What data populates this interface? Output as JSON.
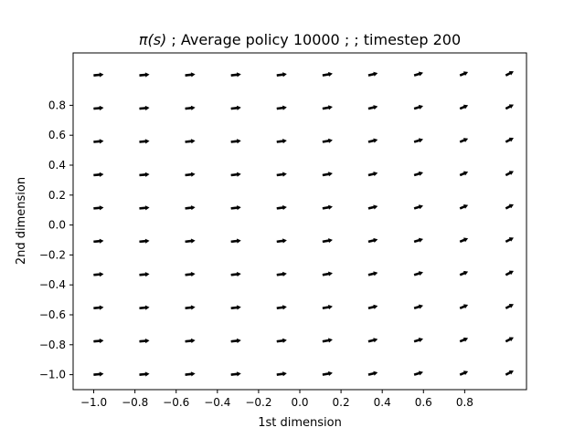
{
  "chart_data": {
    "type": "quiver",
    "title_prefix": "π(s)",
    "title_suffix": " ; Average policy 10000 ;  ; timestep 200",
    "xlabel": "1st dimension",
    "ylabel": "2nd dimension",
    "x_ticks": [
      "−1.0",
      "−0.8",
      "−0.6",
      "−0.4",
      "−0.2",
      "0.0",
      "0.2",
      "0.4",
      "0.6",
      "0.8"
    ],
    "x_tick_values": [
      -1.0,
      -0.8,
      -0.6,
      -0.4,
      -0.2,
      0.0,
      0.2,
      0.4,
      0.6,
      0.8
    ],
    "y_ticks": [
      "−1.0",
      "−0.8",
      "−0.6",
      "−0.4",
      "−0.2",
      "0.0",
      "0.2",
      "0.4",
      "0.6",
      "0.8"
    ],
    "y_tick_values": [
      -1.0,
      -0.8,
      -0.6,
      -0.4,
      -0.2,
      0.0,
      0.2,
      0.4,
      0.6,
      0.8
    ],
    "xlim": [
      -1.1,
      1.1
    ],
    "ylim": [
      -1.1,
      1.15
    ],
    "grid": false,
    "x": [
      -1.0,
      -0.7778,
      -0.5556,
      -0.3333,
      -0.1111,
      0.1111,
      0.3333,
      0.5556,
      0.7778,
      1.0
    ],
    "y": [
      -1.0,
      -0.7778,
      -0.5556,
      -0.3333,
      -0.1111,
      0.1111,
      0.3333,
      0.5556,
      0.7778,
      1.0
    ],
    "u": [
      [
        0.045,
        0.045,
        0.045,
        0.045,
        0.045,
        0.045,
        0.042,
        0.04,
        0.036,
        0.035
      ],
      [
        0.045,
        0.045,
        0.045,
        0.045,
        0.045,
        0.045,
        0.042,
        0.04,
        0.036,
        0.035
      ],
      [
        0.045,
        0.045,
        0.045,
        0.045,
        0.045,
        0.045,
        0.042,
        0.04,
        0.036,
        0.035
      ],
      [
        0.045,
        0.045,
        0.045,
        0.045,
        0.045,
        0.045,
        0.042,
        0.04,
        0.036,
        0.035
      ],
      [
        0.045,
        0.045,
        0.045,
        0.045,
        0.045,
        0.045,
        0.042,
        0.04,
        0.036,
        0.035
      ],
      [
        0.045,
        0.045,
        0.045,
        0.045,
        0.045,
        0.045,
        0.042,
        0.04,
        0.036,
        0.035
      ],
      [
        0.045,
        0.045,
        0.045,
        0.045,
        0.045,
        0.045,
        0.042,
        0.04,
        0.036,
        0.035
      ],
      [
        0.045,
        0.045,
        0.045,
        0.045,
        0.045,
        0.045,
        0.042,
        0.04,
        0.036,
        0.035
      ],
      [
        0.045,
        0.045,
        0.045,
        0.045,
        0.045,
        0.045,
        0.042,
        0.04,
        0.036,
        0.035
      ],
      [
        0.045,
        0.045,
        0.045,
        0.045,
        0.045,
        0.045,
        0.042,
        0.04,
        0.036,
        0.035
      ]
    ],
    "v": [
      [
        0.004,
        0.004,
        0.005,
        0.005,
        0.006,
        0.008,
        0.01,
        0.012,
        0.015,
        0.018
      ],
      [
        0.004,
        0.004,
        0.005,
        0.005,
        0.006,
        0.008,
        0.01,
        0.012,
        0.015,
        0.018
      ],
      [
        0.004,
        0.004,
        0.005,
        0.005,
        0.006,
        0.008,
        0.01,
        0.012,
        0.015,
        0.018
      ],
      [
        0.004,
        0.004,
        0.005,
        0.005,
        0.006,
        0.008,
        0.01,
        0.012,
        0.015,
        0.018
      ],
      [
        0.004,
        0.004,
        0.005,
        0.005,
        0.006,
        0.008,
        0.01,
        0.012,
        0.015,
        0.018
      ],
      [
        0.004,
        0.004,
        0.005,
        0.005,
        0.006,
        0.008,
        0.01,
        0.012,
        0.015,
        0.018
      ],
      [
        0.004,
        0.004,
        0.005,
        0.005,
        0.006,
        0.008,
        0.01,
        0.012,
        0.015,
        0.018
      ],
      [
        0.004,
        0.004,
        0.005,
        0.005,
        0.006,
        0.008,
        0.01,
        0.012,
        0.015,
        0.018
      ],
      [
        0.004,
        0.004,
        0.005,
        0.005,
        0.006,
        0.008,
        0.01,
        0.012,
        0.015,
        0.018
      ],
      [
        0.004,
        0.004,
        0.005,
        0.005,
        0.006,
        0.008,
        0.01,
        0.012,
        0.015,
        0.018
      ]
    ],
    "arrow_color": "#000000"
  }
}
